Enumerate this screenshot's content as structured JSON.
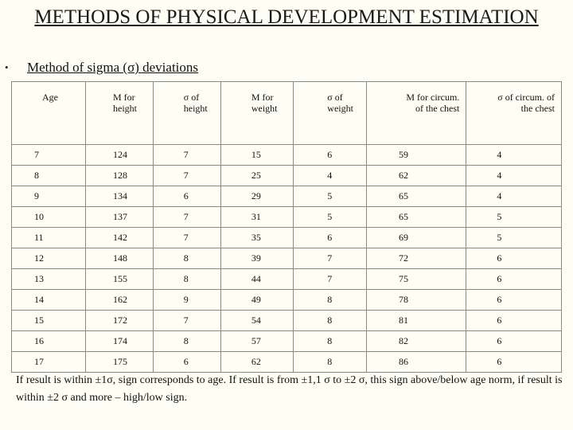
{
  "title": "METHODS OF PHYSICAL DEVELOPMENT ESTIMATION",
  "subtitle": "Method of sigma (σ) deviations",
  "bullet": "•",
  "table": {
    "headers": [
      "Age",
      "M for height",
      "σ of height",
      "M for weight",
      "σ of weight",
      "M for circum. of the chest",
      "σ of circum. of the chest"
    ],
    "rows": [
      [
        "7",
        "124",
        "7",
        "15",
        "6",
        "59",
        "4"
      ],
      [
        "8",
        "128",
        "7",
        "25",
        "4",
        "62",
        "4"
      ],
      [
        "9",
        "134",
        "6",
        "29",
        "5",
        "65",
        "4"
      ],
      [
        "10",
        "137",
        "7",
        "31",
        "5",
        "65",
        "5"
      ],
      [
        "11",
        "142",
        "7",
        "35",
        "6",
        "69",
        "5"
      ],
      [
        "12",
        "148",
        "8",
        "39",
        "7",
        "72",
        "6"
      ],
      [
        "13",
        "155",
        "8",
        "44",
        "7",
        "75",
        "6"
      ],
      [
        "14",
        "162",
        "9",
        "49",
        "8",
        "78",
        "6"
      ],
      [
        "15",
        "172",
        "7",
        "54",
        "8",
        "81",
        "6"
      ],
      [
        "16",
        "174",
        "8",
        "57",
        "8",
        "82",
        "6"
      ],
      [
        "17",
        "175",
        "6",
        "62",
        "8",
        "86",
        "6"
      ]
    ]
  },
  "note": "If result is within ±1σ, sign corresponds to age. If result is from ±1,1 σ to ±2 σ, this sign above/below age norm, if result is within ±2 σ and more – high/low sign."
}
